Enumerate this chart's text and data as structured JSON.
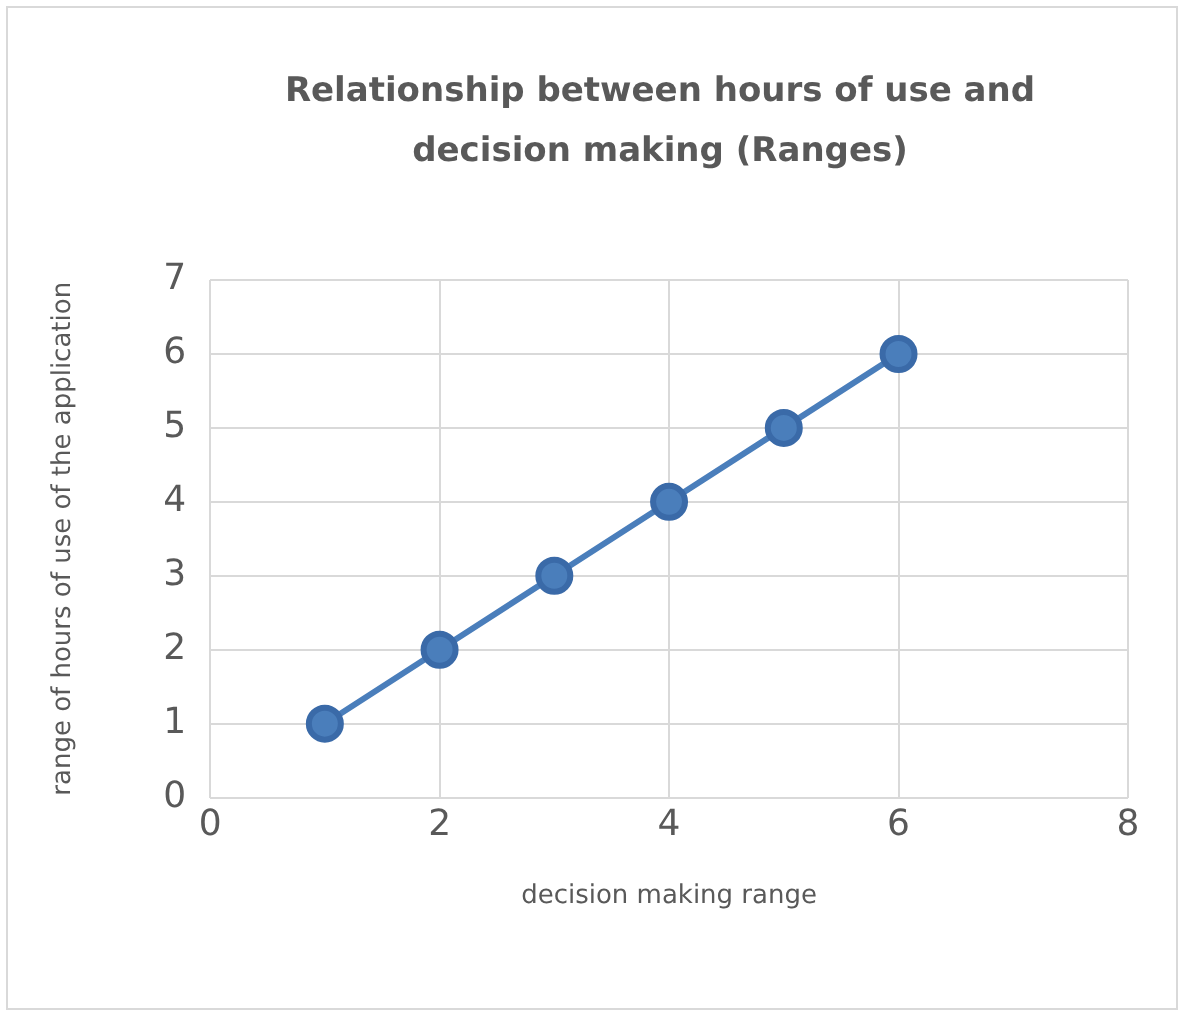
{
  "chart_data": {
    "type": "line",
    "title": "Relationship between hours of use and decision making (Ranges)",
    "xlabel": "decision making range",
    "ylabel": "range of hours of use of the application",
    "x": [
      1,
      2,
      3,
      4,
      5,
      6
    ],
    "series": [
      {
        "color": "#4a7ebb",
        "values": [
          1,
          2,
          3,
          4,
          5,
          6
        ]
      }
    ],
    "xlim": [
      0,
      8
    ],
    "xticks": [
      0,
      2,
      4,
      6,
      8
    ],
    "ylim": [
      0,
      7
    ],
    "yticks": [
      0,
      1,
      2,
      3,
      4,
      5,
      6,
      7
    ],
    "grid": true,
    "marker": "circle",
    "line_style": "solid",
    "legend": false
  }
}
